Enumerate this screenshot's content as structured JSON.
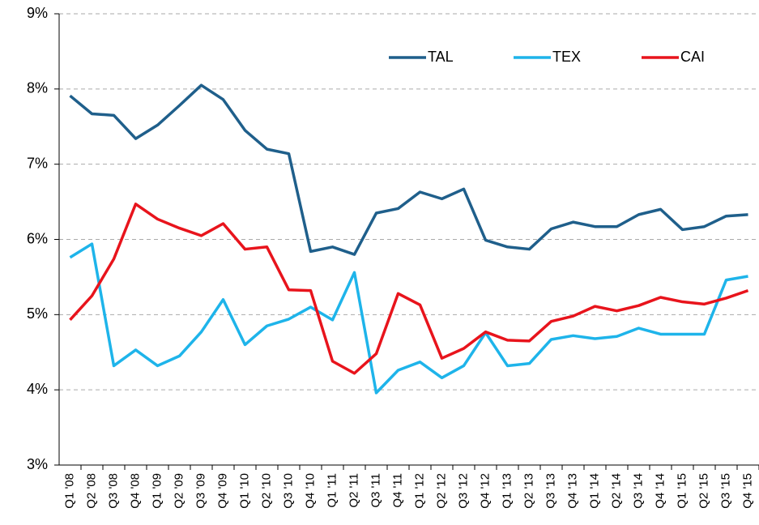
{
  "chart_data": {
    "type": "line",
    "categories": [
      "Q1 '08",
      "Q2 '08",
      "Q3 '08",
      "Q4 '08",
      "Q1 '09",
      "Q2 '09",
      "Q3 '09",
      "Q4 '09",
      "Q1 '10",
      "Q2 '10",
      "Q3 '10",
      "Q4 '10",
      "Q1 '11",
      "Q2 '11",
      "Q3 '11",
      "Q4 '11",
      "Q1 '12",
      "Q2 '12",
      "Q3 '12",
      "Q4 '12",
      "Q1 '13",
      "Q2 '13",
      "Q3 '13",
      "Q4 '13",
      "Q1 '14",
      "Q2 '14",
      "Q3 '14",
      "Q4 '14",
      "Q1 '15",
      "Q2 '15",
      "Q3 '15",
      "Q4 '15"
    ],
    "series": [
      {
        "name": "TAL",
        "color": "#1f5f8b",
        "values": [
          7.91,
          7.67,
          7.65,
          7.34,
          7.52,
          7.78,
          8.05,
          7.86,
          7.45,
          7.2,
          7.14,
          5.84,
          5.9,
          5.8,
          6.35,
          6.41,
          6.63,
          6.54,
          6.67,
          5.99,
          5.9,
          5.87,
          6.14,
          6.23,
          6.17,
          6.17,
          6.33,
          6.4,
          6.13,
          6.17,
          6.31,
          6.33
        ]
      },
      {
        "name": "TEX",
        "color": "#1eb4ea",
        "values": [
          5.76,
          5.94,
          4.32,
          4.53,
          4.32,
          4.45,
          4.77,
          5.2,
          4.6,
          4.85,
          4.94,
          5.1,
          4.93,
          5.56,
          3.96,
          4.26,
          4.37,
          4.16,
          4.32,
          4.76,
          4.32,
          4.35,
          4.67,
          4.72,
          4.68,
          4.71,
          4.82,
          4.74,
          4.74,
          4.74,
          5.46,
          5.51
        ]
      },
      {
        "name": "CAI",
        "color": "#e8141c",
        "values": [
          4.93,
          5.25,
          5.74,
          6.47,
          6.27,
          6.15,
          6.05,
          6.21,
          5.87,
          5.9,
          5.33,
          5.32,
          4.38,
          4.22,
          4.48,
          5.28,
          5.13,
          4.42,
          4.55,
          4.77,
          4.66,
          4.65,
          4.91,
          4.98,
          5.11,
          5.05,
          5.12,
          5.23,
          5.17,
          5.14,
          5.22,
          5.32
        ]
      }
    ],
    "ylim": [
      3,
      9
    ],
    "yticks": [
      {
        "value": 3,
        "label": "3%"
      },
      {
        "value": 4,
        "label": "4%"
      },
      {
        "value": 5,
        "label": "5%"
      },
      {
        "value": 6,
        "label": "6%"
      },
      {
        "value": 7,
        "label": "7%"
      },
      {
        "value": 8,
        "label": "8%"
      },
      {
        "value": 9,
        "label": "9%"
      }
    ],
    "grid": true,
    "legend": "top-right"
  }
}
